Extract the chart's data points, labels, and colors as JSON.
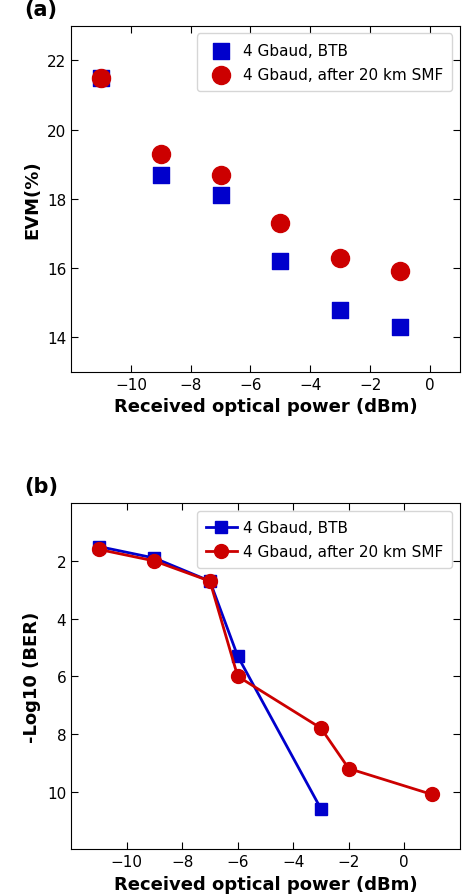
{
  "panel_a": {
    "btb_x": [
      -11,
      -9,
      -7,
      -5,
      -3,
      -1
    ],
    "btb_y": [
      21.5,
      18.7,
      18.1,
      16.2,
      14.8,
      14.3
    ],
    "smf_x": [
      -11,
      -9,
      -7,
      -5,
      -3,
      -1
    ],
    "smf_y": [
      21.5,
      19.3,
      18.7,
      17.3,
      16.3,
      15.9
    ],
    "xlabel": "Received optical power (dBm)",
    "ylabel": "EVM(%)",
    "xlim": [
      -12,
      1
    ],
    "ylim": [
      13,
      23
    ],
    "yticks": [
      14,
      16,
      18,
      20,
      22
    ],
    "xticks": [
      -10,
      -8,
      -6,
      -4,
      -2,
      0
    ],
    "label_a": "(a)"
  },
  "panel_b": {
    "btb_x": [
      -11,
      -9,
      -7,
      -6,
      -3
    ],
    "btb_y": [
      1.5,
      1.9,
      2.7,
      5.3,
      10.6
    ],
    "smf_x": [
      -11,
      -9,
      -7,
      -6,
      -3,
      -2,
      1
    ],
    "smf_y": [
      1.6,
      2.0,
      2.7,
      6.0,
      7.8,
      9.2,
      10.1
    ],
    "xlabel": "Received optical power (dBm)",
    "ylabel": "-Log10 (BER)",
    "xlim": [
      -12,
      2
    ],
    "ylim": [
      0,
      12
    ],
    "yticks": [
      2,
      4,
      6,
      8,
      10
    ],
    "xticks": [
      -10,
      -8,
      -6,
      -4,
      -2,
      0
    ],
    "label_b": "(b)",
    "invert_y": true
  },
  "btb_label": "4 Gbaud, BTB",
  "smf_label": "4 Gbaud, after 20 km SMF",
  "blue_color": "#0000CC",
  "red_color": "#CC0000",
  "marker_btb": "s",
  "marker_smf": "o",
  "marker_size_a": 130,
  "marker_size_b": 9,
  "linewidth_b": 2.0,
  "legend_fontsize": 11,
  "label_fontsize": 13,
  "tick_fontsize": 11
}
